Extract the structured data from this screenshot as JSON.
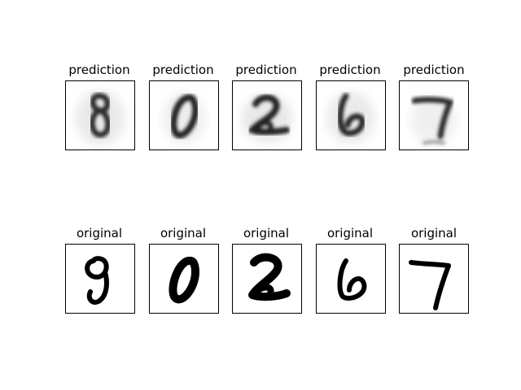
{
  "rows": [
    {
      "kind": "prediction",
      "title": "prediction",
      "panels": [
        {
          "digit": "8"
        },
        {
          "digit": "0"
        },
        {
          "digit": "2"
        },
        {
          "digit": "6"
        },
        {
          "digit": "7"
        }
      ]
    },
    {
      "kind": "original",
      "title": "original",
      "panels": [
        {
          "digit": "9"
        },
        {
          "digit": "0"
        },
        {
          "digit": "2"
        },
        {
          "digit": "6"
        },
        {
          "digit": "7"
        }
      ]
    }
  ]
}
